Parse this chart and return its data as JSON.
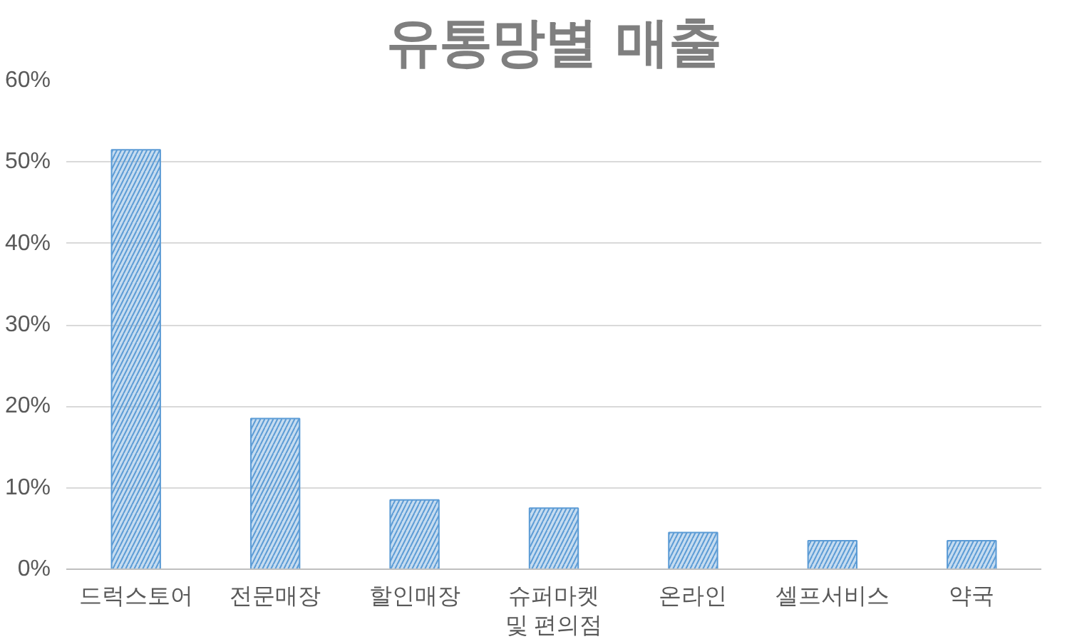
{
  "chart_data": {
    "type": "bar",
    "title": "유통망별 매출",
    "categories": [
      "드럭스토어",
      "전문매장",
      "할인매장",
      "슈퍼마켓\n및 편의점",
      "온라인",
      "셀프서비스",
      "약국"
    ],
    "values": [
      51.5,
      18.5,
      8.5,
      7.5,
      4.5,
      3.5,
      3.5
    ],
    "color": "#5b9bd5",
    "ylim": [
      0,
      60
    ],
    "yticks": [
      {
        "value": 0,
        "label": "0%"
      },
      {
        "value": 10,
        "label": "10%"
      },
      {
        "value": 20,
        "label": "20%"
      },
      {
        "value": 30,
        "label": "30%"
      },
      {
        "value": 40,
        "label": "40%"
      },
      {
        "value": 50,
        "label": "50%"
      },
      {
        "value": 60,
        "label": "60%"
      }
    ],
    "grid": "y"
  }
}
